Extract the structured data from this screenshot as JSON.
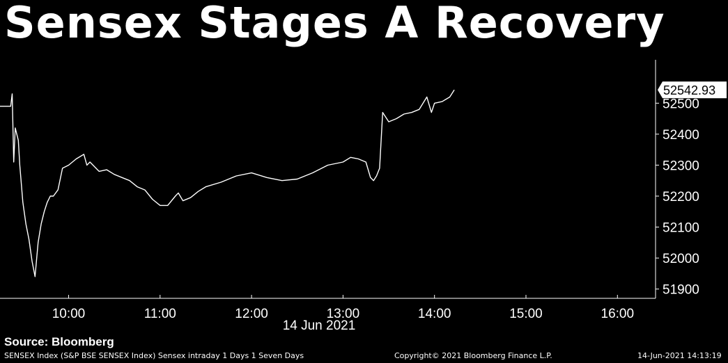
{
  "title": "Sensex Stages A Recovery",
  "source": "Source: Bloomberg",
  "footer": {
    "left": "SENSEX Index (S&P BSE SENSEX Index) Sensex intraday 1 Days 1 Seven Days",
    "center": "Copyright© 2021 Bloomberg Finance L.P.",
    "right": "14-Jun-2021 14:13:19"
  },
  "colors": {
    "background": "#000000",
    "line": "#ffffff",
    "last_price_box": "#ffffff"
  },
  "chart_data": {
    "type": "line",
    "xlabel": "14 Jun 2021",
    "ylabel": "",
    "x_ticks": [
      "10:00",
      "11:00",
      "12:00",
      "13:00",
      "14:00",
      "15:00",
      "16:00"
    ],
    "y_ticks": [
      51900,
      52000,
      52100,
      52200,
      52300,
      52400,
      52500
    ],
    "ylim": [
      51870,
      52640
    ],
    "xlim": [
      "09:15",
      "16:25"
    ],
    "grid": false,
    "last_price": "52542.93",
    "series": [
      {
        "x": [
          "09:15",
          "09:22",
          "09:23",
          "09:24",
          "09:25",
          "09:26",
          "09:27",
          "09:28",
          "09:30",
          "09:32",
          "09:34",
          "09:36",
          "09:38",
          "09:40",
          "09:42",
          "09:44",
          "09:46",
          "09:48",
          "09:50",
          "09:53",
          "09:56",
          "10:00",
          "10:05",
          "10:10",
          "10:12",
          "10:14",
          "10:20",
          "10:25",
          "10:30",
          "10:35",
          "10:40",
          "10:45",
          "10:50",
          "10:55",
          "11:00",
          "11:05",
          "11:10",
          "11:12",
          "11:15",
          "11:20",
          "11:25",
          "11:30",
          "11:40",
          "11:50",
          "12:00",
          "12:10",
          "12:20",
          "12:30",
          "12:40",
          "12:50",
          "13:00",
          "13:05",
          "13:10",
          "13:15",
          "13:18",
          "13:20",
          "13:22",
          "13:24",
          "13:26",
          "13:30",
          "13:35",
          "13:40",
          "13:45",
          "13:50",
          "13:55",
          "13:58",
          "14:00",
          "14:05",
          "14:10",
          "14:13"
        ],
        "y": [
          52490,
          52490,
          52530,
          52310,
          52420,
          52400,
          52380,
          52300,
          52180,
          52110,
          52060,
          51990,
          51940,
          52050,
          52110,
          52150,
          52180,
          52200,
          52200,
          52220,
          52290,
          52300,
          52320,
          52335,
          52300,
          52310,
          52280,
          52285,
          52270,
          52260,
          52250,
          52230,
          52220,
          52190,
          52170,
          52170,
          52200,
          52210,
          52185,
          52195,
          52215,
          52230,
          52245,
          52265,
          52275,
          52260,
          52250,
          52255,
          52275,
          52300,
          52310,
          52325,
          52320,
          52310,
          52260,
          52250,
          52265,
          52290,
          52470,
          52440,
          52450,
          52465,
          52470,
          52480,
          52520,
          52470,
          52500,
          52505,
          52520,
          52543
        ]
      }
    ]
  }
}
